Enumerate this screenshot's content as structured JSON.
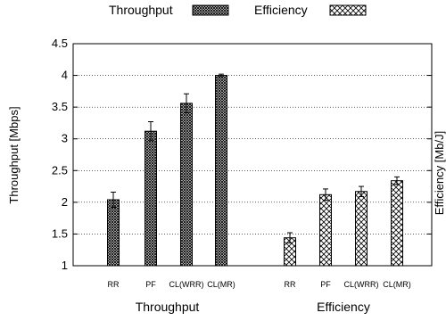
{
  "chart_data": {
    "type": "bar",
    "ylabel": "Throughput [Mbps]",
    "ylabel_right": "Efficiency [Mb/J]",
    "ylim": [
      1,
      4.5
    ],
    "yticks": [
      "1",
      "1.5",
      "2",
      "2.5",
      "3",
      "3.5",
      "4",
      "4.5"
    ],
    "grid": "horizontal dotted",
    "legend_position": "top",
    "groups": [
      {
        "name": "Throughput",
        "pattern": "dense-crosshatch",
        "categories": [
          "RR",
          "PF",
          "CL(WRR)",
          "CL(MR)"
        ],
        "values": [
          2.04,
          3.12,
          3.56,
          4.0
        ],
        "errors": [
          0.12,
          0.15,
          0.15,
          0.02
        ]
      },
      {
        "name": "Efficiency",
        "pattern": "open-crosshatch",
        "categories": [
          "RR",
          "PF",
          "CL(WRR)",
          "CL(MR)"
        ],
        "values": [
          1.44,
          2.12,
          2.17,
          2.34
        ],
        "errors": [
          0.08,
          0.09,
          0.08,
          0.06
        ]
      }
    ],
    "legend": [
      {
        "label": "Throughput",
        "pattern": "dense-crosshatch"
      },
      {
        "label": "Efficiency",
        "pattern": "open-crosshatch"
      }
    ]
  }
}
